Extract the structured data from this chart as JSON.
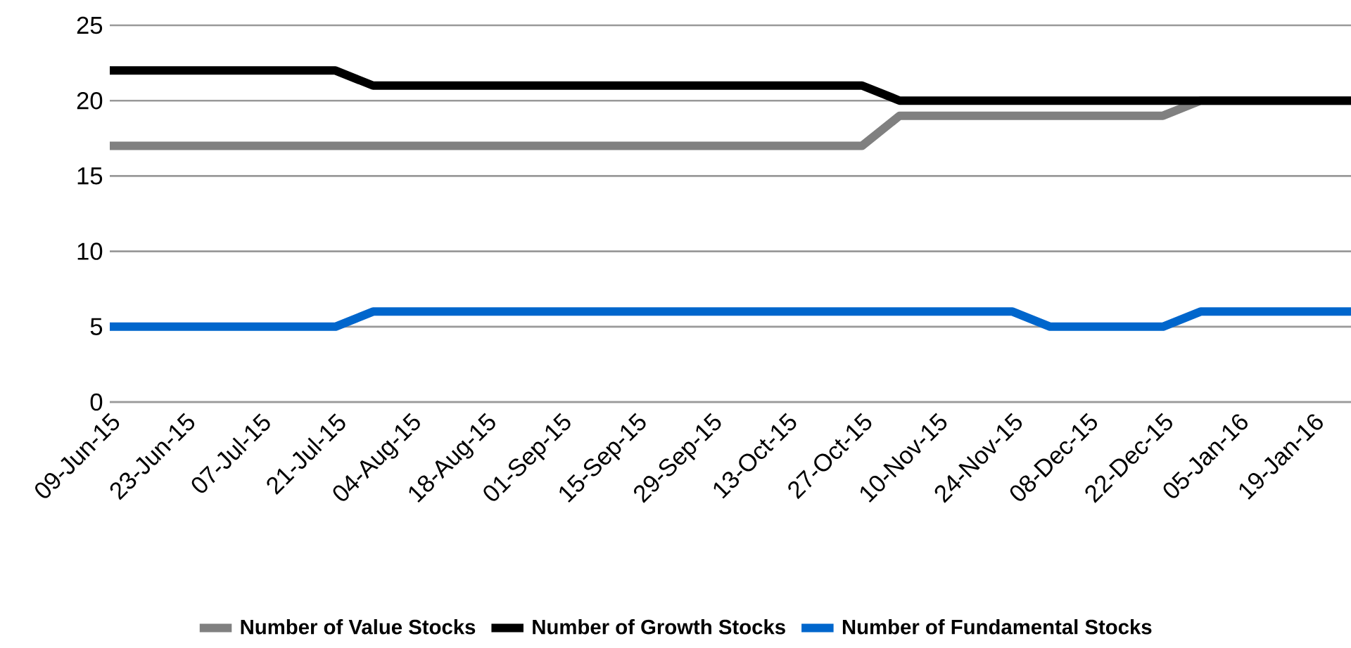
{
  "chart_data": {
    "type": "line",
    "categories": [
      "09-Jun-15",
      null,
      "23-Jun-15",
      null,
      "07-Jul-15",
      null,
      "21-Jul-15",
      null,
      "04-Aug-15",
      null,
      "18-Aug-15",
      null,
      "01-Sep-15",
      null,
      "15-Sep-15",
      null,
      "29-Sep-15",
      null,
      "13-Oct-15",
      null,
      "27-Oct-15",
      null,
      "10-Nov-15",
      null,
      "24-Nov-15",
      null,
      "08-Dec-15",
      null,
      "22-Dec-15",
      null,
      "05-Jan-16",
      null,
      "19-Jan-16",
      null
    ],
    "series": [
      {
        "name": "Number of Value Stocks",
        "color": "#808080",
        "values": [
          17,
          17,
          17,
          17,
          17,
          17,
          17,
          17,
          17,
          17,
          17,
          17,
          17,
          17,
          17,
          17,
          17,
          17,
          17,
          17,
          17,
          19,
          19,
          19,
          19,
          19,
          19,
          19,
          19,
          20,
          20,
          20,
          20,
          20
        ]
      },
      {
        "name": "Number of Growth Stocks",
        "color": "#000000",
        "values": [
          22,
          22,
          22,
          22,
          22,
          22,
          22,
          21,
          21,
          21,
          21,
          21,
          21,
          21,
          21,
          21,
          21,
          21,
          21,
          21,
          21,
          20,
          20,
          20,
          20,
          20,
          20,
          20,
          20,
          20,
          20,
          20,
          20,
          20
        ]
      },
      {
        "name": "Number of Fundamental Stocks",
        "color": "#0066cc",
        "values": [
          5,
          5,
          5,
          5,
          5,
          5,
          5,
          6,
          6,
          6,
          6,
          6,
          6,
          6,
          6,
          6,
          6,
          6,
          6,
          6,
          6,
          6,
          6,
          6,
          6,
          5,
          5,
          5,
          5,
          6,
          6,
          6,
          6,
          6
        ]
      }
    ],
    "ylim": [
      0,
      25
    ],
    "yticks": [
      0,
      5,
      10,
      15,
      20,
      25
    ],
    "grid": "y",
    "legend": "bottom"
  }
}
